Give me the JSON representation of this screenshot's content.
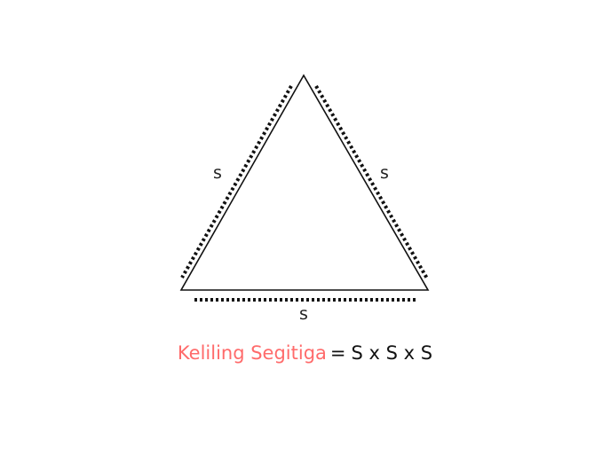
{
  "diagram": {
    "side_labels": {
      "left": "s",
      "right": "s",
      "bottom": "s"
    }
  },
  "formula": {
    "name": "Keliling Segitiga",
    "equals": "=",
    "expression": "S x S x S"
  },
  "colors": {
    "formula_name": "#ff6b6b",
    "stroke": "#111111"
  }
}
